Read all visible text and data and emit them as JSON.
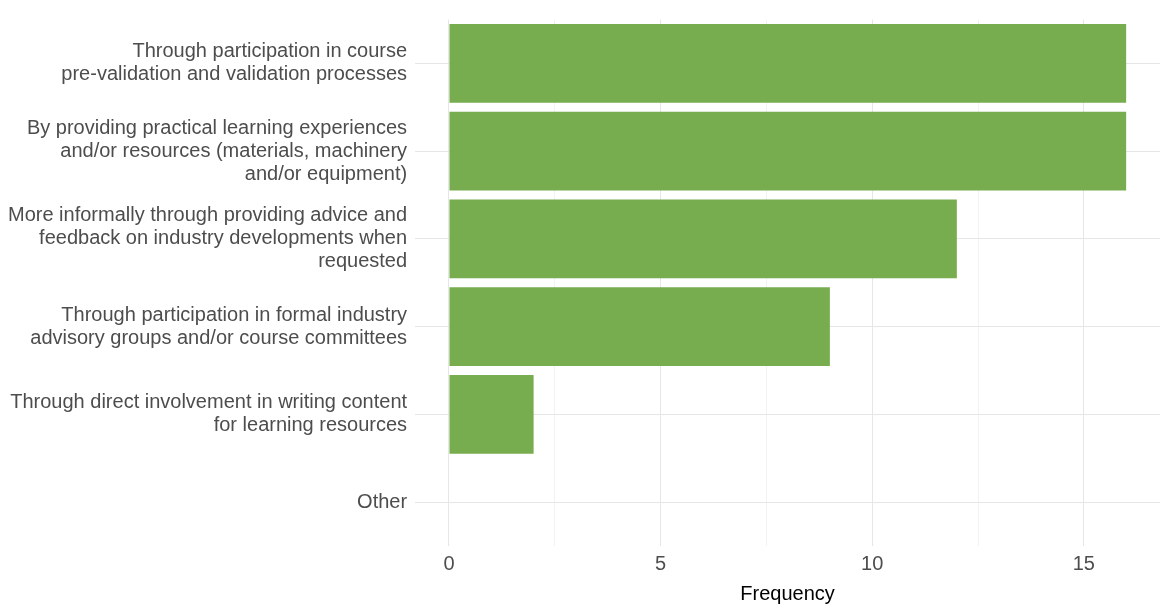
{
  "chart_data": {
    "type": "bar",
    "orientation": "horizontal",
    "xlabel": "Frequency",
    "categories": [
      "Through participation in course pre-validation and validation processes",
      "By providing practical learning experiences and/or resources (materials, machinery and/or equipment)",
      "More informally through providing advice and feedback on industry developments when requested",
      "Through participation in formal industry advisory groups and/or course committees",
      "Through direct involvement in writing content for learning resources",
      "Other"
    ],
    "values": [
      16,
      16,
      12,
      9,
      2,
      0
    ],
    "color": "#78ad4f",
    "xlim": [
      -0.8,
      16.8
    ],
    "xticks": [
      0,
      {
        "value": 2.5,
        "label": null
      },
      5,
      {
        "value": 7.5,
        "label": null
      },
      10,
      {
        "value": 12.5,
        "label": null
      },
      15
    ],
    "grid": true
  }
}
